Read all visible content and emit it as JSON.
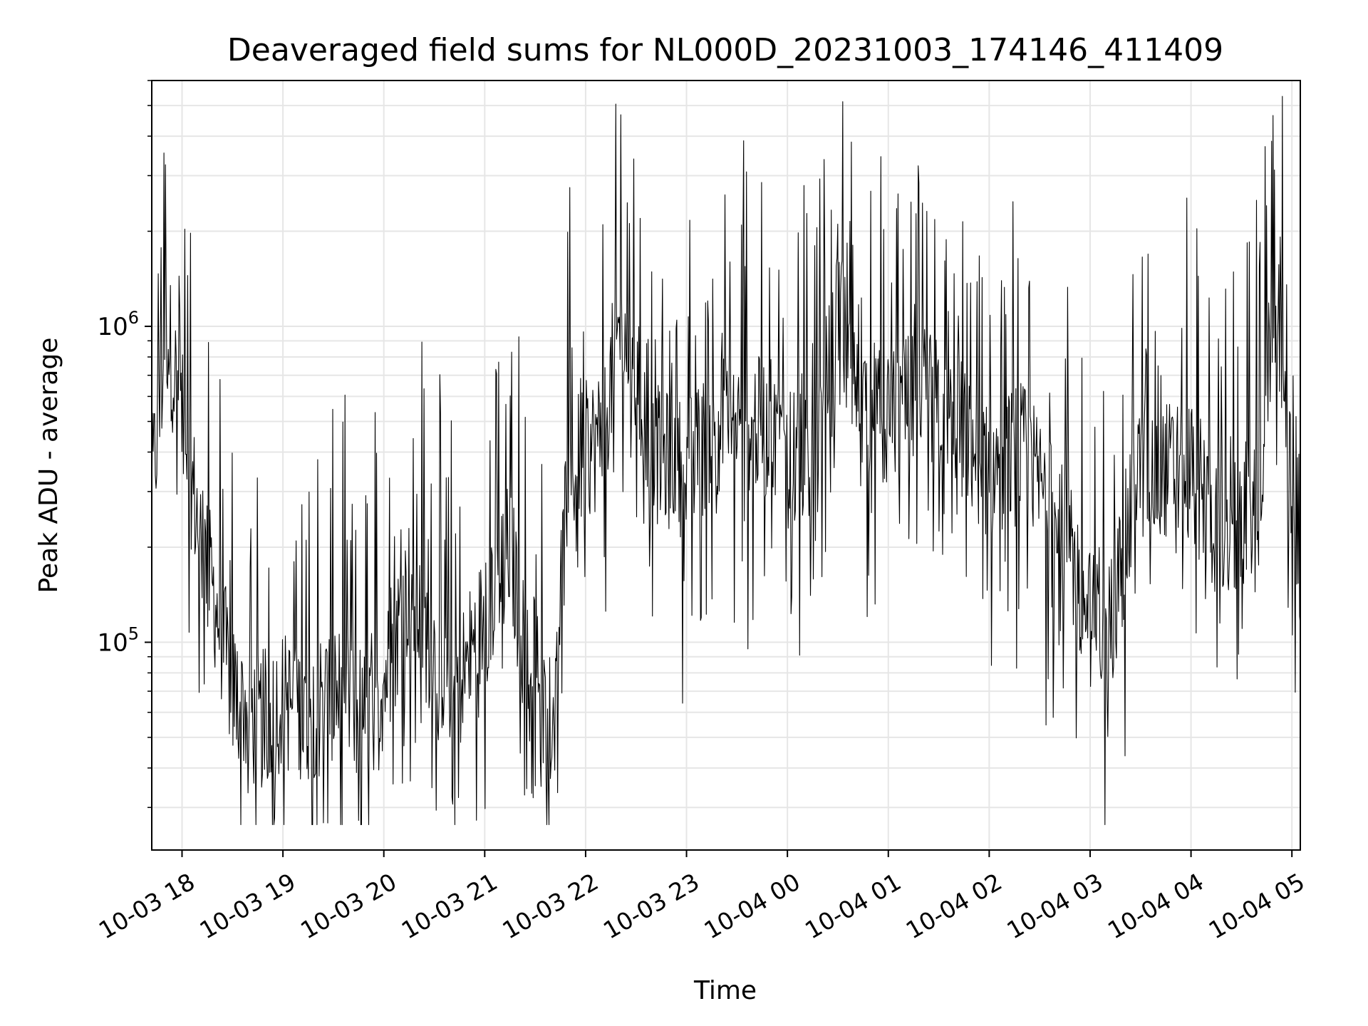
{
  "chart_data": {
    "type": "line",
    "title": "Deaveraged field sums for NL000D_20231003_174146_411409",
    "xlabel": "Time",
    "ylabel": "Peak ADU - average",
    "x_range": [
      "2023-10-03 17:42",
      "2023-10-04 05:05"
    ],
    "ylim": [
      22000,
      6000000
    ],
    "yscale": "log",
    "grid": true,
    "line_color": "#000000",
    "x_tick_labels": [
      "10-03 18",
      "10-03 19",
      "10-03 20",
      "10-03 21",
      "10-03 22",
      "10-03 23",
      "10-04 00",
      "10-04 01",
      "10-04 02",
      "10-04 03",
      "10-04 04",
      "10-04 05"
    ],
    "x_ticks": [
      "2023-10-03 18:00",
      "2023-10-03 19:00",
      "2023-10-03 20:00",
      "2023-10-03 21:00",
      "2023-10-03 22:00",
      "2023-10-03 23:00",
      "2023-10-04 00:00",
      "2023-10-04 01:00",
      "2023-10-04 02:00",
      "2023-10-04 03:00",
      "2023-10-04 04:00",
      "2023-10-04 05:00"
    ],
    "y_major_ticks": [
      100000,
      1000000
    ],
    "series": [
      {
        "x": [
          "2023-10-03 17:42",
          "2023-10-03 17:51",
          "2023-10-03 18:00",
          "2023-10-03 18:12",
          "2023-10-03 18:18",
          "2023-10-03 18:30",
          "2023-10-03 18:45",
          "2023-10-03 19:00",
          "2023-10-03 19:15",
          "2023-10-03 19:30",
          "2023-10-03 19:45",
          "2023-10-03 20:00",
          "2023-10-03 20:15",
          "2023-10-03 20:30",
          "2023-10-03 20:45",
          "2023-10-03 21:00",
          "2023-10-03 21:15",
          "2023-10-03 21:30",
          "2023-10-03 21:40",
          "2023-10-03 21:50",
          "2023-10-03 22:00",
          "2023-10-03 22:10",
          "2023-10-03 22:20",
          "2023-10-03 22:40",
          "2023-10-03 23:00",
          "2023-10-03 23:20",
          "2023-10-03 23:40",
          "2023-10-04 00:00",
          "2023-10-04 00:20",
          "2023-10-04 00:30",
          "2023-10-04 00:40",
          "2023-10-04 01:00",
          "2023-10-04 01:20",
          "2023-10-04 01:40",
          "2023-10-04 02:00",
          "2023-10-04 02:20",
          "2023-10-04 02:40",
          "2023-10-04 03:00",
          "2023-10-04 03:10",
          "2023-10-04 03:30",
          "2023-10-04 04:00",
          "2023-10-04 04:20",
          "2023-10-04 04:40",
          "2023-10-04 04:48",
          "2023-10-04 04:54",
          "2023-10-04 05:05"
        ],
        "values": [
          300000,
          1000000,
          500000,
          200000,
          150000,
          70000,
          55000,
          65000,
          60000,
          70000,
          60000,
          75000,
          150000,
          90000,
          75000,
          120000,
          200000,
          55000,
          60000,
          350000,
          400000,
          450000,
          1000000,
          400000,
          350000,
          500000,
          500000,
          400000,
          500000,
          1200000,
          600000,
          500000,
          600000,
          500000,
          350000,
          400000,
          250000,
          120000,
          100000,
          350000,
          350000,
          200000,
          300000,
          1000000,
          900000,
          90000
        ]
      }
    ]
  }
}
